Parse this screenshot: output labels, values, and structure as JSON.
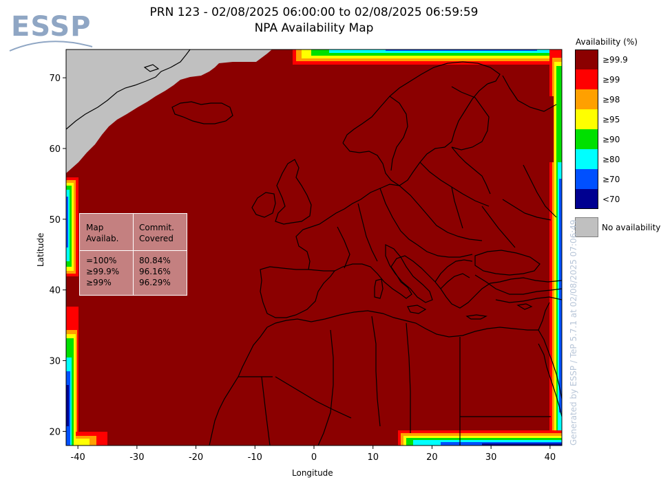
{
  "logo": {
    "text": "ESSP"
  },
  "title": {
    "line1": "PRN 123 - 02/08/2025 06:00:00 to 02/08/2025 06:59:59",
    "line2": "NPA Availability Map"
  },
  "colors": {
    "v999": "#8b0000",
    "v99": "#ff0000",
    "v98": "#ffa000",
    "v95": "#ffff00",
    "v90": "#00e000",
    "v80": "#00ffff",
    "v70": "#0050ff",
    "below70": "#000090",
    "no_availability": "#c0c0c0",
    "coast": "#000000"
  },
  "map": {
    "lon_range": [
      -42,
      42
    ],
    "lat_range": [
      18,
      74
    ],
    "x_ticks": [
      -40,
      -30,
      -20,
      -10,
      0,
      10,
      20,
      30,
      40
    ],
    "y_ticks": [
      20,
      30,
      40,
      50,
      60,
      70
    ],
    "xlabel": "Longitude",
    "ylabel": "Latitude"
  },
  "summary": {
    "header_left": "Map\nAvailab.",
    "header_right": "Commit.\nCovered",
    "rows_left": "=100%\n≥99.9%\n≥99%",
    "rows_right": "80.84%\n96.16%\n96.29%"
  },
  "legend": {
    "title": "Availability (%)",
    "items": [
      {
        "label": "≥99.9",
        "color": "#8b0000"
      },
      {
        "label": "≥99",
        "color": "#ff0000"
      },
      {
        "label": "≥98",
        "color": "#ffa000"
      },
      {
        "label": "≥95",
        "color": "#ffff00"
      },
      {
        "label": "≥90",
        "color": "#00e000"
      },
      {
        "label": "≥80",
        "color": "#00ffff"
      },
      {
        "label": "≥70",
        "color": "#0050ff"
      },
      {
        "label": "<70",
        "color": "#000090"
      }
    ],
    "no_availability": "No availability"
  },
  "credit": "Generated by ESSP / TeP 5.7.1 at 02/08/2025 07:06:49"
}
